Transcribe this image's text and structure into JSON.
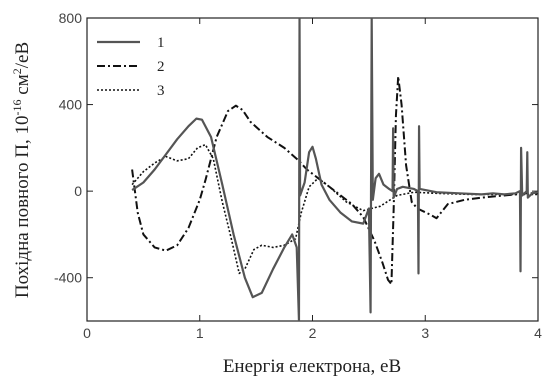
{
  "chart_data": {
    "type": "line",
    "xlabel": "Енергія електрона, еВ",
    "ylabel_main": "Похідна повного П, 10",
    "ylabel_exp": "-16",
    "ylabel_unit": " см",
    "ylabel_unit_exp": "2",
    "ylabel_tail": "/еВ",
    "xlim": [
      0,
      4
    ],
    "ylim": [
      -600,
      800
    ],
    "xticks": [
      0,
      1,
      2,
      3,
      4
    ],
    "yticks": [
      -400,
      0,
      400,
      800
    ],
    "tick_labels_x": [
      "0",
      "1",
      "2",
      "3",
      "4"
    ],
    "tick_labels_y": [
      "-400",
      "0",
      "400",
      "800"
    ],
    "legend_position": "top-left",
    "series": [
      {
        "name": "1",
        "style": "solid",
        "color": "#555555",
        "points": [
          [
            0.4,
            5
          ],
          [
            0.5,
            40
          ],
          [
            0.6,
            100
          ],
          [
            0.7,
            170
          ],
          [
            0.8,
            240
          ],
          [
            0.9,
            300
          ],
          [
            0.97,
            335
          ],
          [
            1.02,
            330
          ],
          [
            1.1,
            250
          ],
          [
            1.2,
            30
          ],
          [
            1.3,
            -200
          ],
          [
            1.4,
            -400
          ],
          [
            1.47,
            -490
          ],
          [
            1.55,
            -470
          ],
          [
            1.65,
            -360
          ],
          [
            1.75,
            -260
          ],
          [
            1.82,
            -200
          ],
          [
            1.86,
            -260
          ],
          [
            1.88,
            -600
          ],
          [
            1.885,
            800
          ],
          [
            1.89,
            -20
          ],
          [
            1.93,
            40
          ],
          [
            1.97,
            180
          ],
          [
            2.0,
            205
          ],
          [
            2.03,
            150
          ],
          [
            2.08,
            30
          ],
          [
            2.15,
            -40
          ],
          [
            2.25,
            -100
          ],
          [
            2.35,
            -140
          ],
          [
            2.45,
            -150
          ],
          [
            2.5,
            -80
          ],
          [
            2.515,
            -560
          ],
          [
            2.525,
            800
          ],
          [
            2.535,
            -40
          ],
          [
            2.56,
            60
          ],
          [
            2.59,
            80
          ],
          [
            2.63,
            30
          ],
          [
            2.68,
            10
          ],
          [
            2.71,
            0
          ],
          [
            2.715,
            290
          ],
          [
            2.72,
            -30
          ],
          [
            2.75,
            10
          ],
          [
            2.8,
            20
          ],
          [
            2.9,
            10
          ],
          [
            2.935,
            0
          ],
          [
            2.94,
            -380
          ],
          [
            2.945,
            300
          ],
          [
            2.95,
            10
          ],
          [
            3.1,
            -5
          ],
          [
            3.3,
            -10
          ],
          [
            3.5,
            -15
          ],
          [
            3.6,
            -10
          ],
          [
            3.7,
            -15
          ],
          [
            3.8,
            -10
          ],
          [
            3.84,
            0
          ],
          [
            3.845,
            -370
          ],
          [
            3.85,
            200
          ],
          [
            3.86,
            -20
          ],
          [
            3.88,
            -10
          ],
          [
            3.9,
            0
          ],
          [
            3.905,
            180
          ],
          [
            3.91,
            -30
          ],
          [
            3.95,
            -10
          ],
          [
            4.0,
            -5
          ]
        ]
      },
      {
        "name": "2",
        "style": "dashdot",
        "color": "#111111",
        "points": [
          [
            0.4,
            100
          ],
          [
            0.45,
            -100
          ],
          [
            0.5,
            -200
          ],
          [
            0.6,
            -260
          ],
          [
            0.7,
            -275
          ],
          [
            0.8,
            -250
          ],
          [
            0.9,
            -170
          ],
          [
            1.0,
            -40
          ],
          [
            1.05,
            50
          ],
          [
            1.15,
            250
          ],
          [
            1.25,
            370
          ],
          [
            1.32,
            395
          ],
          [
            1.38,
            375
          ],
          [
            1.45,
            320
          ],
          [
            1.6,
            250
          ],
          [
            1.75,
            200
          ],
          [
            1.88,
            140
          ],
          [
            1.95,
            100
          ],
          [
            2.05,
            60
          ],
          [
            2.2,
            0
          ],
          [
            2.35,
            -60
          ],
          [
            2.45,
            -120
          ],
          [
            2.55,
            -230
          ],
          [
            2.62,
            -330
          ],
          [
            2.67,
            -410
          ],
          [
            2.7,
            -430
          ],
          [
            2.72,
            -80
          ],
          [
            2.74,
            350
          ],
          [
            2.76,
            530
          ],
          [
            2.79,
            400
          ],
          [
            2.83,
            120
          ],
          [
            2.88,
            -50
          ],
          [
            2.93,
            -80
          ],
          [
            3.05,
            -110
          ],
          [
            3.1,
            -125
          ],
          [
            3.2,
            -60
          ],
          [
            3.35,
            -40
          ],
          [
            3.5,
            -30
          ],
          [
            3.7,
            -20
          ],
          [
            3.9,
            -10
          ],
          [
            4.0,
            -10
          ]
        ]
      },
      {
        "name": "3",
        "style": "dotted",
        "color": "#111111",
        "points": [
          [
            0.4,
            30
          ],
          [
            0.5,
            90
          ],
          [
            0.6,
            130
          ],
          [
            0.7,
            160
          ],
          [
            0.8,
            140
          ],
          [
            0.9,
            150
          ],
          [
            0.98,
            200
          ],
          [
            1.05,
            215
          ],
          [
            1.12,
            150
          ],
          [
            1.2,
            -50
          ],
          [
            1.28,
            -220
          ],
          [
            1.35,
            -380
          ],
          [
            1.4,
            -360
          ],
          [
            1.48,
            -270
          ],
          [
            1.55,
            -250
          ],
          [
            1.65,
            -260
          ],
          [
            1.75,
            -250
          ],
          [
            1.85,
            -220
          ],
          [
            1.9,
            -100
          ],
          [
            1.97,
            20
          ],
          [
            2.05,
            60
          ],
          [
            2.15,
            20
          ],
          [
            2.3,
            -50
          ],
          [
            2.45,
            -90
          ],
          [
            2.6,
            -70
          ],
          [
            2.75,
            -20
          ],
          [
            2.9,
            -5
          ],
          [
            3.1,
            -10
          ],
          [
            3.4,
            -15
          ],
          [
            3.7,
            -15
          ],
          [
            4.0,
            -15
          ]
        ]
      }
    ]
  }
}
